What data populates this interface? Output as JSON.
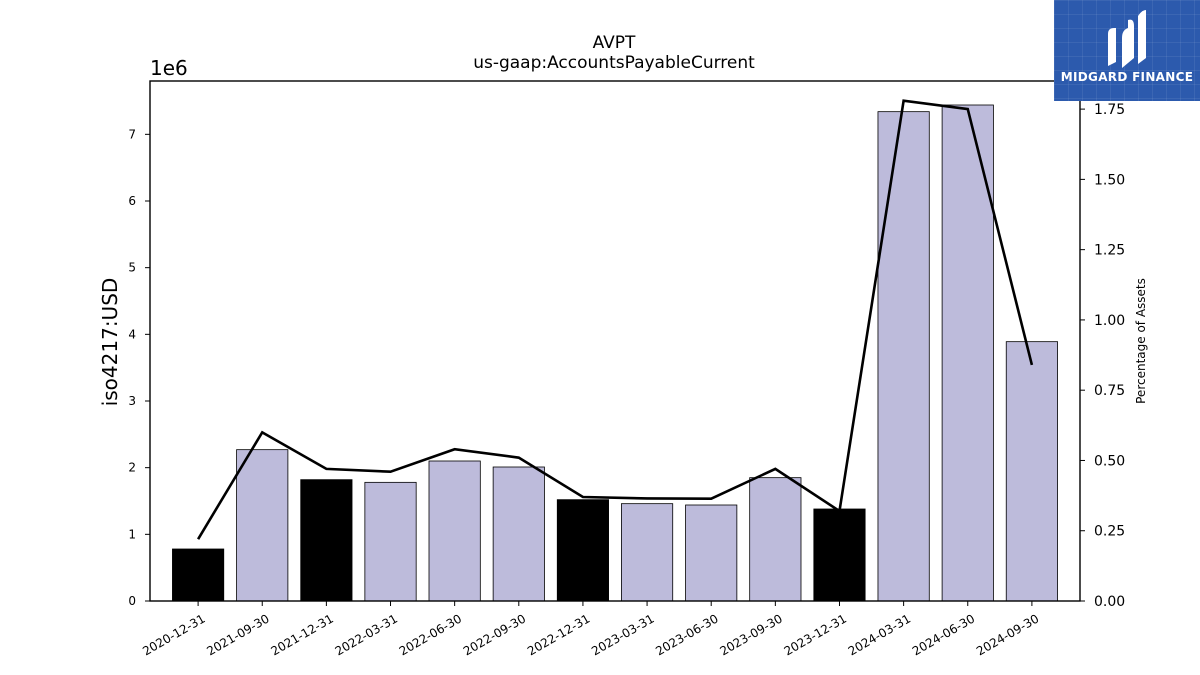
{
  "chart_data": {
    "type": "bar",
    "title": "AVPT",
    "subtitle": "us-gaap:AccountsPayableCurrent",
    "ylabel": "iso4217:USD",
    "y_offset_label": "1e6",
    "y2label": "Percentage of Assets",
    "categories": [
      "2020-12-31",
      "2021-09-30",
      "2021-12-31",
      "2022-03-31",
      "2022-06-30",
      "2022-09-30",
      "2022-12-31",
      "2023-03-31",
      "2023-06-30",
      "2023-09-30",
      "2023-12-31",
      "2024-03-31",
      "2024-06-30",
      "2024-09-30"
    ],
    "values": [
      780000,
      2270000,
      1820000,
      1780000,
      2100000,
      2010000,
      1520000,
      1460000,
      1440000,
      1850000,
      1380000,
      7340000,
      7440000,
      3890000
    ],
    "bar_colors": [
      "#000000",
      "#bdbbdb",
      "#000000",
      "#bdbbdb",
      "#bdbbdb",
      "#bdbbdb",
      "#000000",
      "#bdbbdb",
      "#bdbbdb",
      "#bdbbdb",
      "#000000",
      "#bdbbdb",
      "#bdbbdb",
      "#bdbbdb"
    ],
    "line_values": [
      0.22,
      0.6,
      0.47,
      0.46,
      0.54,
      0.51,
      0.37,
      0.365,
      0.364,
      0.47,
      0.32,
      1.78,
      1.75,
      0.84
    ],
    "ylim": [
      0,
      7800000
    ],
    "y_ticks": [
      0,
      1,
      2,
      3,
      4,
      5,
      6,
      7
    ],
    "y2lim": [
      0,
      1.85
    ],
    "y2_ticks": [
      "0.00",
      "0.25",
      "0.50",
      "0.75",
      "1.00",
      "1.25",
      "1.50",
      "1.75"
    ],
    "grid": false,
    "legend": "none"
  },
  "logo": {
    "text": "MIDGARD FINANCE",
    "background": "#2c5aad"
  }
}
